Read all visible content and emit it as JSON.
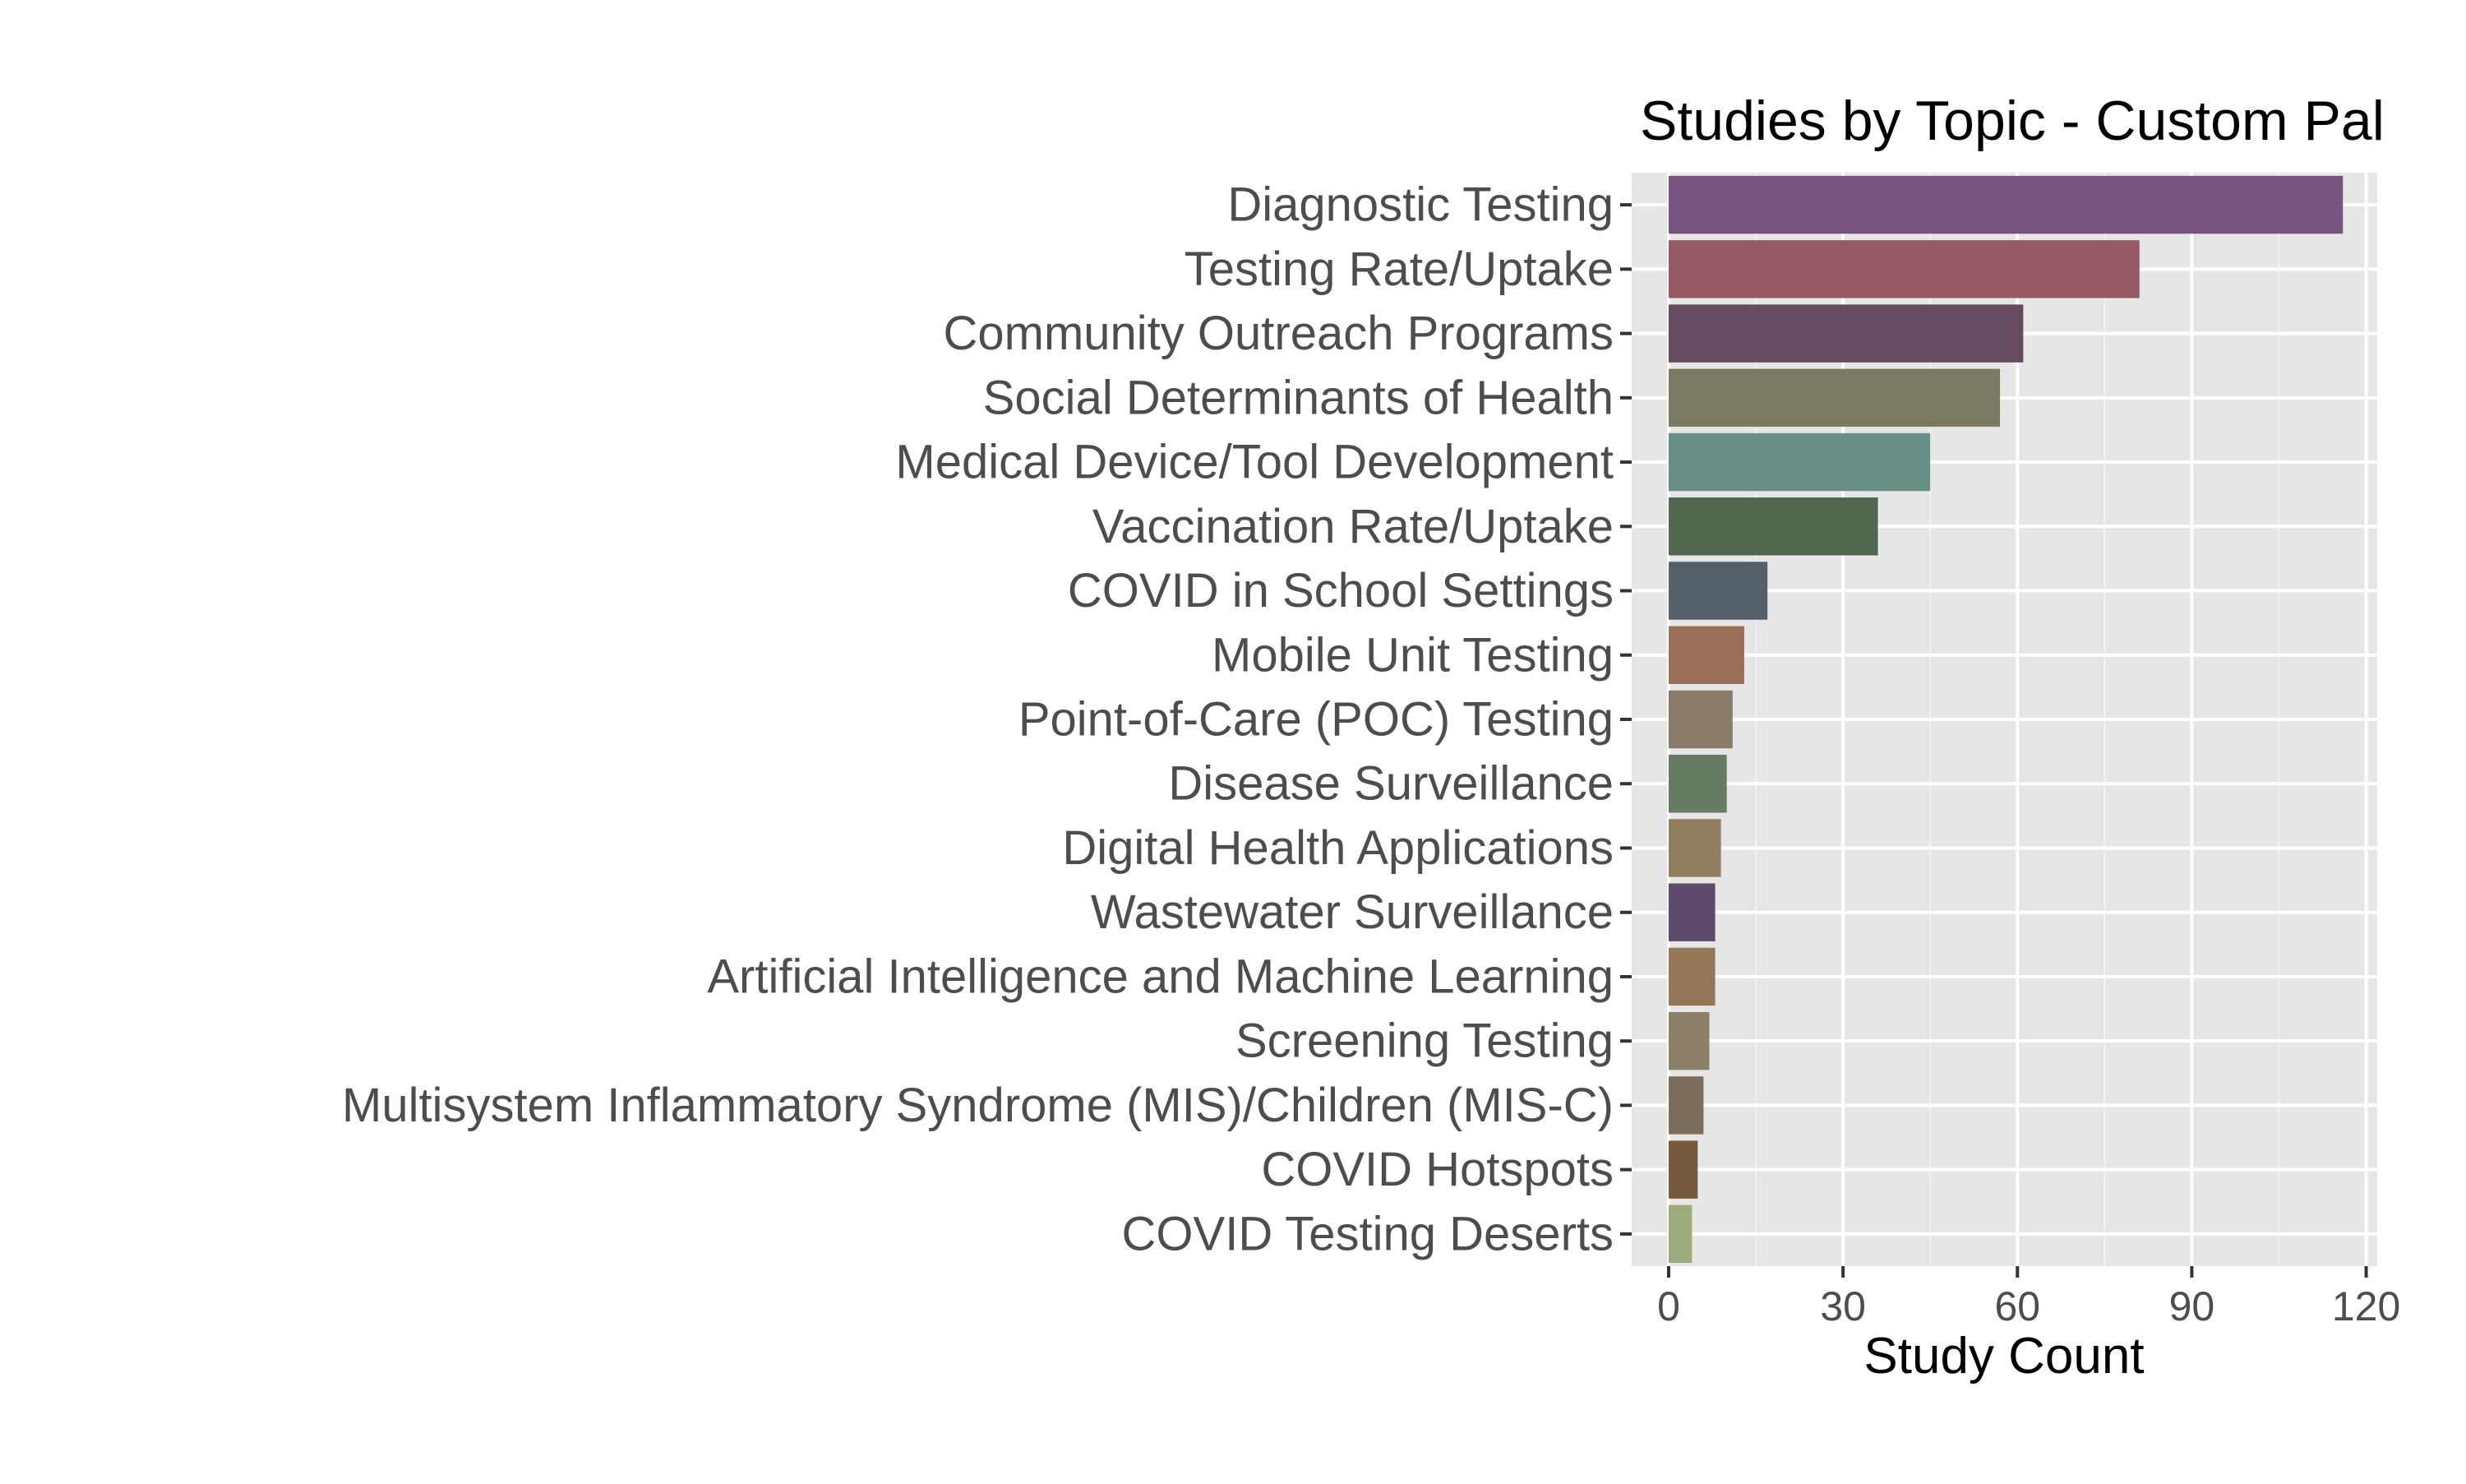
{
  "chart_data": {
    "type": "bar",
    "orientation": "horizontal",
    "title": "Studies by Topic - Custom Pal",
    "xlabel": "Study Count",
    "ylabel": "",
    "xlim": [
      0,
      122
    ],
    "xticks": [
      0,
      30,
      60,
      90,
      120
    ],
    "grid": true,
    "legend": "none",
    "categories": [
      "Diagnostic Testing",
      "Testing Rate/Uptake",
      "Community Outreach Programs",
      "Social Determinants of Health",
      "Medical Device/Tool Development",
      "Vaccination Rate/Uptake",
      "COVID in School Settings",
      "Mobile Unit Testing",
      "Point-of-Care (POC) Testing",
      "Disease Surveillance",
      "Digital Health Applications",
      "Wastewater Surveillance",
      "Artificial Intelligence and Machine Learning",
      "Screening Testing",
      "Multisystem Inflammatory Syndrome (MIS)/Children (MIS-C)",
      "COVID Hotspots",
      "COVID Testing Deserts"
    ],
    "values": [
      116,
      81,
      61,
      57,
      45,
      36,
      17,
      13,
      11,
      10,
      9,
      8,
      8,
      7,
      6,
      5,
      4
    ],
    "colors": [
      "#775580",
      "#955a64",
      "#654a60",
      "#7b7962",
      "#678f86",
      "#4f664f",
      "#545f69",
      "#9b705a",
      "#8a7b68",
      "#667b62",
      "#927e61",
      "#5e4a6c",
      "#947757",
      "#8c8069",
      "#7e6d5b",
      "#745b3d",
      "#9bab7b"
    ]
  }
}
